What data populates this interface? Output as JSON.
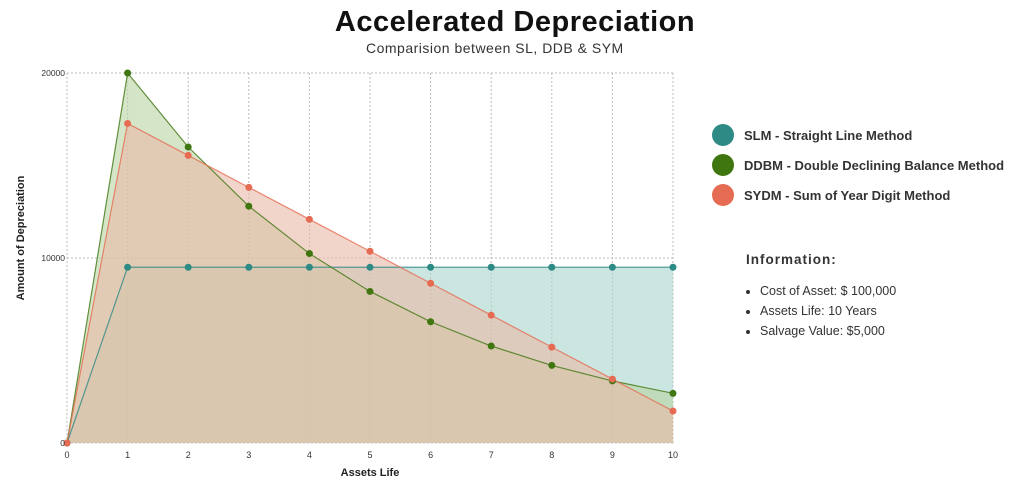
{
  "chart_data": {
    "type": "area",
    "title": "Accelerated Depreciation",
    "subtitle": "Comparision between SL, DDB & SYM",
    "xlabel": "Assets Life",
    "ylabel": "Amount of Depreciation",
    "x": [
      0,
      1,
      2,
      3,
      4,
      5,
      6,
      7,
      8,
      9,
      10
    ],
    "xticks": [
      "0",
      "1",
      "2",
      "3",
      "4",
      "5",
      "6",
      "7",
      "8",
      "9",
      "10"
    ],
    "yticks": [
      {
        "v": 0,
        "label": "0"
      },
      {
        "v": 10000,
        "label": "10000"
      },
      {
        "v": 20000,
        "label": "20000"
      }
    ],
    "xlim": [
      0,
      10
    ],
    "ylim": [
      0,
      20000
    ],
    "grid": true,
    "legend_placement": "right",
    "series": [
      {
        "name": "SLM - Straight Line Method",
        "color": "#2e8a84",
        "fill": "#a8d3cc",
        "values": [
          0,
          9500,
          9500,
          9500,
          9500,
          9500,
          9500,
          9500,
          9500,
          9500,
          9500
        ]
      },
      {
        "name": "DDBM - Double Declining Balance Method",
        "color": "#3f7610",
        "fill": "#b9d3a4",
        "values": [
          0,
          20000,
          16000,
          12800,
          10240,
          8192,
          6554,
          5243,
          4194,
          3355,
          2684
        ]
      },
      {
        "name": "SYDM - Sum of Year Digit Method",
        "color": "#e56b52",
        "fill": "#e9b9a6",
        "values": [
          0,
          17273,
          15545,
          13818,
          12091,
          10364,
          8636,
          6909,
          5182,
          3455,
          1727
        ]
      }
    ]
  },
  "info": {
    "heading": "Information:",
    "items": [
      "Cost of Asset: $ 100,000",
      "Assets Life: 10 Years",
      "Salvage Value:  $5,000"
    ]
  }
}
